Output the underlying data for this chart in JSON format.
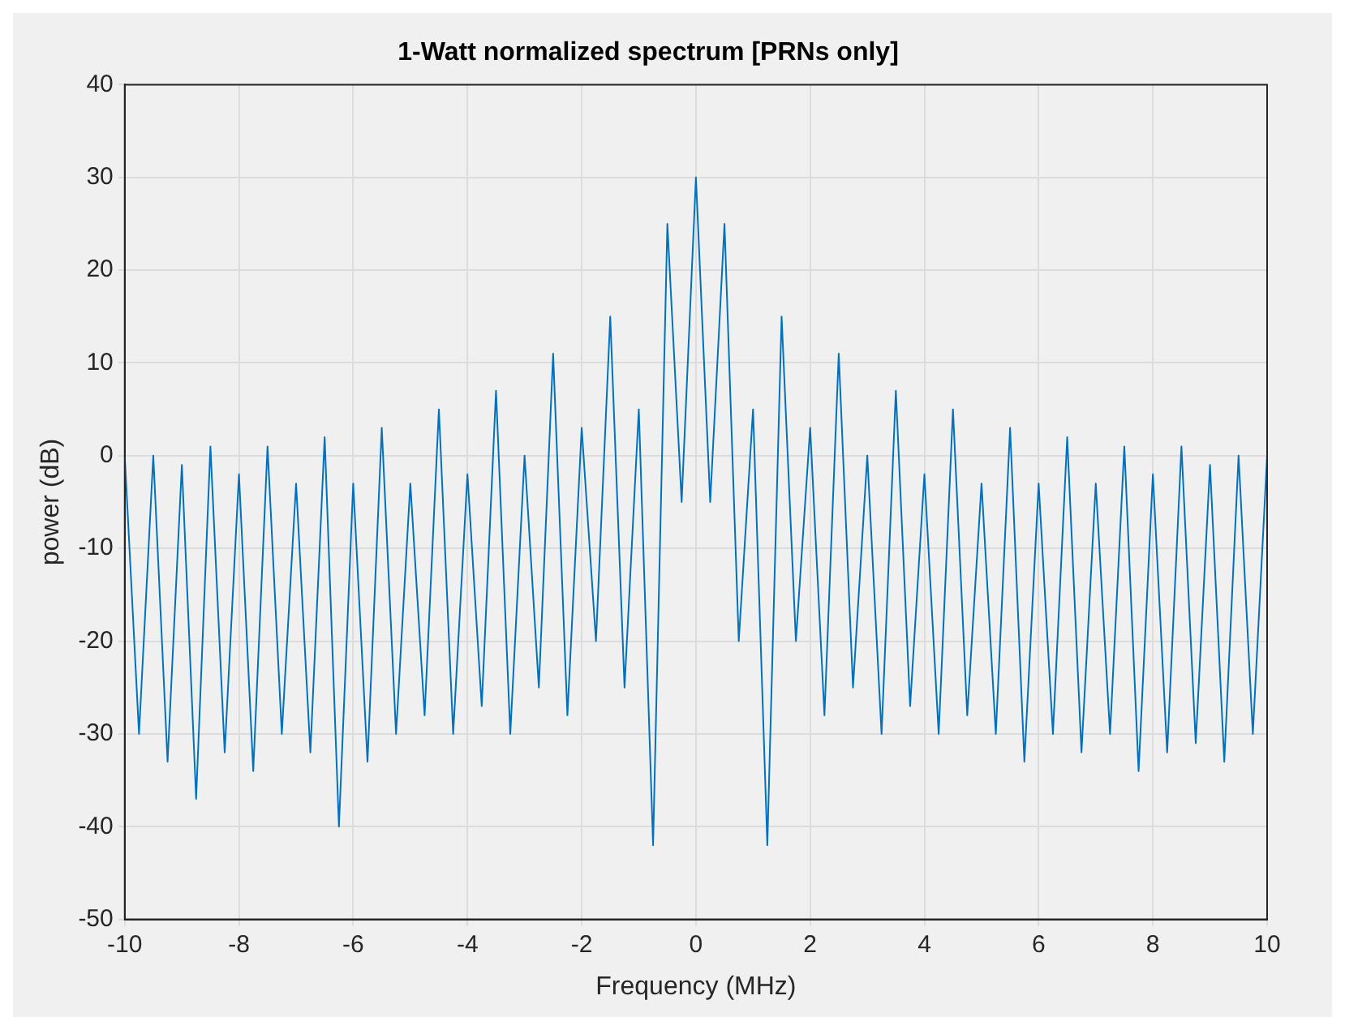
{
  "chart_data": {
    "type": "line",
    "title": "1-Watt normalized spectrum [PRNs only]",
    "xlabel": "Frequency (MHz)",
    "ylabel": "power (dB)",
    "x": [
      -10,
      -9.75,
      -9.5,
      -9.25,
      -9,
      -8.75,
      -8.5,
      -8.25,
      -8,
      -7.75,
      -7.5,
      -7.25,
      -7,
      -6.75,
      -6.5,
      -6.25,
      -6,
      -5.75,
      -5.5,
      -5.25,
      -5,
      -4.75,
      -4.5,
      -4.25,
      -4,
      -3.75,
      -3.5,
      -3.25,
      -3,
      -2.75,
      -2.5,
      -2.25,
      -2,
      -1.75,
      -1.5,
      -1.25,
      -1,
      -0.75,
      -0.5,
      -0.25,
      0,
      0.25,
      0.5,
      0.75,
      1,
      1.25,
      1.5,
      1.75,
      2,
      2.25,
      2.5,
      2.75,
      3,
      3.25,
      3.5,
      3.75,
      4,
      4.25,
      4.5,
      4.75,
      5,
      5.25,
      5.5,
      5.75,
      6,
      6.25,
      6.5,
      6.75,
      7,
      7.25,
      7.5,
      7.75,
      8,
      8.25,
      8.5,
      8.75,
      9,
      9.25,
      9.5,
      9.75,
      10
    ],
    "series": [
      {
        "color": "#0072bd",
        "values": [
          0,
          -30,
          0,
          -33,
          -1,
          -37,
          1,
          -32,
          -2,
          -34,
          1,
          -30,
          -3,
          -32,
          2,
          -40,
          -3,
          -33,
          3,
          -30,
          -3,
          -28,
          5,
          -30,
          -2,
          -27,
          7,
          -30,
          0,
          -25,
          11,
          -28,
          3,
          -20,
          15,
          -25,
          5,
          -42,
          25,
          -5,
          30,
          -5,
          25,
          -20,
          5,
          -42,
          15,
          -20,
          3,
          -28,
          11,
          -25,
          0,
          -30,
          7,
          -27,
          -2,
          -30,
          5,
          -28,
          -3,
          -30,
          3,
          -33,
          -3,
          -30,
          2,
          -32,
          -3,
          -30,
          1,
          -34,
          -2,
          -32,
          1,
          -31,
          -1,
          -33,
          0,
          -30,
          0
        ]
      }
    ],
    "xlim": [
      -10,
      10
    ],
    "xticks": [
      -10,
      -8,
      -6,
      -4,
      -2,
      0,
      2,
      4,
      6,
      8,
      10
    ],
    "ylim": [
      -50,
      40
    ],
    "yticks": [
      -50,
      -40,
      -30,
      -20,
      -10,
      0,
      10,
      20,
      30,
      40
    ],
    "grid": true,
    "legend": false,
    "line_style": "solid",
    "marker": "none"
  }
}
